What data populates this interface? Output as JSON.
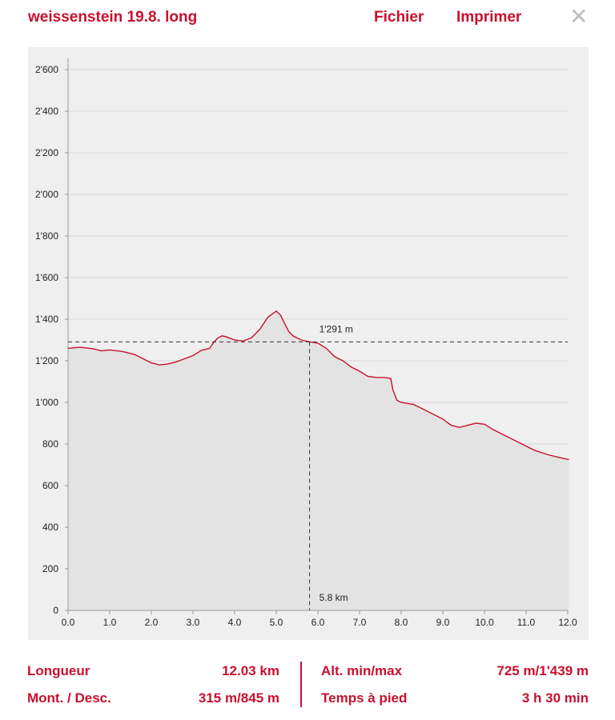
{
  "header": {
    "title": "weissenstein 19.8. long",
    "file_label": "Fichier",
    "print_label": "Imprimer",
    "close_glyph": "✕"
  },
  "colors": {
    "accent": "#c8102e",
    "panel_bg": "#efefef",
    "area_fill": "#e3e3e3",
    "grid": "#d4d4d4"
  },
  "chart_data": {
    "type": "area",
    "title": "",
    "xlabel": "",
    "ylabel": "",
    "xlim": [
      0,
      12
    ],
    "ylim": [
      0,
      2600
    ],
    "x_ticks": [
      "0.0",
      "1.0",
      "2.0",
      "3.0",
      "4.0",
      "5.0",
      "6.0",
      "7.0",
      "8.0",
      "9.0",
      "10.0",
      "11.0",
      "12.0"
    ],
    "y_ticks": [
      "0",
      "200",
      "400",
      "600",
      "800",
      "1'000",
      "1'200",
      "1'400",
      "1'600",
      "1'800",
      "2'000",
      "2'200",
      "2'400",
      "2'600"
    ],
    "grid": "horizontal",
    "series": [
      {
        "x": [
          0,
          0.3,
          0.6,
          0.8,
          1.0,
          1.3,
          1.6,
          1.8,
          2.0,
          2.2,
          2.4,
          2.6,
          2.8,
          3.0,
          3.2,
          3.4,
          3.5,
          3.6,
          3.7,
          3.8,
          4.0,
          4.2,
          4.4,
          4.6,
          4.8,
          5.0,
          5.1,
          5.2,
          5.3,
          5.4,
          5.6,
          5.8,
          6.0,
          6.2,
          6.4,
          6.6,
          6.8,
          7.0,
          7.2,
          7.4,
          7.6,
          7.75,
          7.8,
          7.9,
          8.0,
          8.3,
          8.5,
          8.7,
          9.0,
          9.2,
          9.4,
          9.6,
          9.8,
          10.0,
          10.2,
          10.5,
          10.8,
          11.0,
          11.2,
          11.5,
          11.8,
          12.03
        ],
        "y": [
          1260,
          1265,
          1258,
          1248,
          1252,
          1245,
          1230,
          1210,
          1190,
          1180,
          1185,
          1195,
          1210,
          1225,
          1250,
          1260,
          1290,
          1310,
          1320,
          1315,
          1300,
          1295,
          1310,
          1350,
          1410,
          1439,
          1420,
          1380,
          1340,
          1320,
          1300,
          1291,
          1285,
          1260,
          1220,
          1200,
          1170,
          1150,
          1125,
          1120,
          1120,
          1115,
          1060,
          1010,
          1000,
          990,
          970,
          950,
          920,
          890,
          880,
          890,
          900,
          895,
          870,
          840,
          810,
          790,
          770,
          750,
          735,
          725
        ]
      }
    ],
    "marker": {
      "x": 5.8,
      "y": 1291,
      "x_label": "5.8 km",
      "y_label": "1'291 m"
    }
  },
  "stats": {
    "length_label": "Longueur",
    "length_value": "12.03 km",
    "ascent_label": "Mont. / Desc.",
    "ascent_value": "315 m/845 m",
    "alt_label": "Alt. min/max",
    "alt_value": "725 m/1'439 m",
    "time_label": "Temps à pied",
    "time_value": "3 h 30 min"
  }
}
